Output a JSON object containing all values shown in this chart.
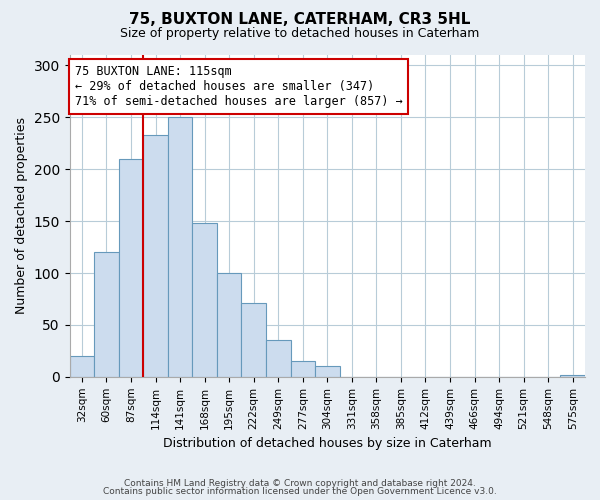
{
  "title": "75, BUXTON LANE, CATERHAM, CR3 5HL",
  "subtitle": "Size of property relative to detached houses in Caterham",
  "xlabel": "Distribution of detached houses by size in Caterham",
  "ylabel": "Number of detached properties",
  "categories": [
    "32sqm",
    "60sqm",
    "87sqm",
    "114sqm",
    "141sqm",
    "168sqm",
    "195sqm",
    "222sqm",
    "249sqm",
    "277sqm",
    "304sqm",
    "331sqm",
    "358sqm",
    "385sqm",
    "412sqm",
    "439sqm",
    "466sqm",
    "494sqm",
    "521sqm",
    "548sqm",
    "575sqm"
  ],
  "values": [
    20,
    120,
    210,
    233,
    250,
    148,
    100,
    71,
    35,
    15,
    10,
    0,
    0,
    0,
    0,
    0,
    0,
    0,
    0,
    0,
    2
  ],
  "bar_color": "#ccdcee",
  "bar_edge_color": "#6699bb",
  "ylim": [
    0,
    310
  ],
  "yticks": [
    0,
    50,
    100,
    150,
    200,
    250,
    300
  ],
  "annotation_title": "75 BUXTON LANE: 115sqm",
  "annotation_line1": "← 29% of detached houses are smaller (347)",
  "annotation_line2": "71% of semi-detached houses are larger (857) →",
  "annotation_box_color": "#ffffff",
  "annotation_box_edge_color": "#cc0000",
  "property_line_color": "#cc0000",
  "footer_line1": "Contains HM Land Registry data © Crown copyright and database right 2024.",
  "footer_line2": "Contains public sector information licensed under the Open Government Licence v3.0.",
  "background_color": "#e8eef4",
  "plot_bg_color": "#ffffff",
  "grid_color": "#b8ccd8"
}
